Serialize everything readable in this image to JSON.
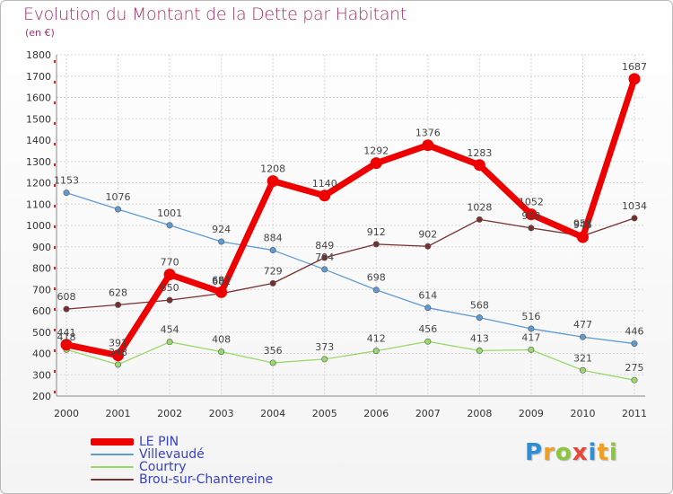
{
  "chart_data": {
    "type": "line",
    "title": "Evolution du Montant de la Dette par Habitant",
    "subtitle": "(en €)",
    "xlabel": "",
    "ylabel": "",
    "ylim": [
      200,
      1800
    ],
    "yticks": [
      200,
      300,
      400,
      500,
      600,
      700,
      800,
      900,
      1000,
      1100,
      1200,
      1300,
      1400,
      1500,
      1600,
      1700,
      1800
    ],
    "categories": [
      "2000",
      "2001",
      "2002",
      "2003",
      "2004",
      "2005",
      "2006",
      "2007",
      "2008",
      "2009",
      "2010",
      "2011"
    ],
    "grid": true,
    "series": [
      {
        "name": "LE PIN",
        "color": "#ee0000",
        "values": [
          441,
          391,
          770,
          687,
          1208,
          1140,
          1292,
          1376,
          1283,
          1052,
          945,
          1687
        ]
      },
      {
        "name": "Villevaudé",
        "color": "#5e9bd3",
        "values": [
          1153,
          1076,
          1001,
          924,
          884,
          794,
          698,
          614,
          568,
          516,
          477,
          446
        ]
      },
      {
        "name": "Courtry",
        "color": "#99d96a",
        "values": [
          418,
          348,
          454,
          408,
          356,
          373,
          412,
          456,
          413,
          417,
          321,
          275
        ]
      },
      {
        "name": "Brou-sur-Chantereine",
        "color": "#7a2f2f",
        "values": [
          608,
          628,
          650,
          681,
          729,
          849,
          912,
          902,
          1028,
          988,
          951,
          1034
        ]
      }
    ]
  },
  "brand": {
    "letters": [
      "P",
      "r",
      "o",
      "x",
      "i",
      "t",
      "i"
    ],
    "colors": [
      "#2e8fd6",
      "#f0a01e",
      "#8cc63f",
      "#e8473b",
      "#2e8fd6",
      "#f0a01e",
      "#8cc63f"
    ]
  }
}
